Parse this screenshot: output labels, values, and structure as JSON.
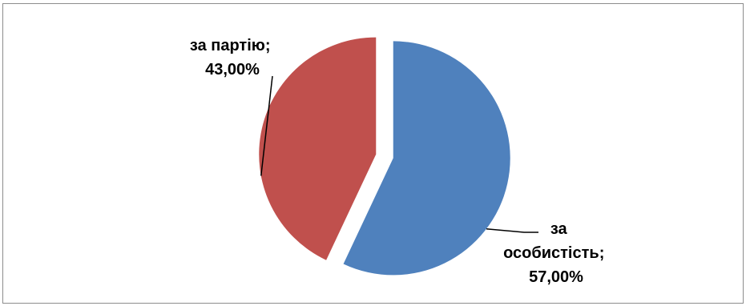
{
  "chart_data": {
    "type": "pie",
    "slices": [
      {
        "label": "за особистість;",
        "label_lines": [
          "за",
          "особистість;"
        ],
        "value": 57.0,
        "value_label": "57,00%",
        "color": "#4f81bd"
      },
      {
        "label": "за партію;",
        "label_lines": [
          "за партію;"
        ],
        "value": 43.0,
        "value_label": "43,00%",
        "color": "#c0504d"
      }
    ],
    "legend": "none",
    "exploded": true
  }
}
